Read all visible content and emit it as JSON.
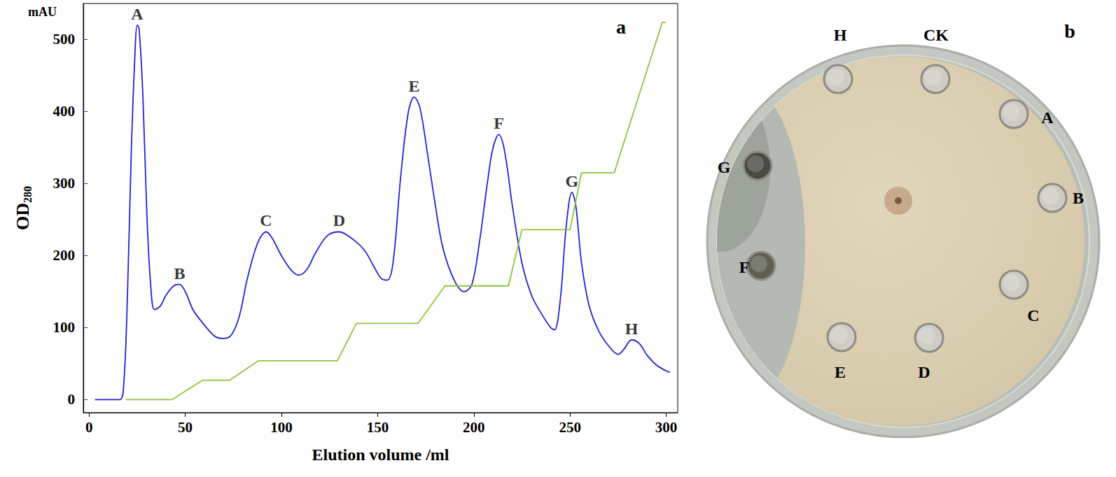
{
  "chart_data": {
    "type": "line",
    "panel_label": "a",
    "xlabel": "Elution volume /ml",
    "ylabel": {
      "text": "OD",
      "subscript": "280"
    },
    "y_unit": "mAU",
    "xlim": [
      -3,
      306
    ],
    "xticks": [
      0,
      50,
      100,
      150,
      200,
      250,
      300
    ],
    "ylim": [
      -18,
      550
    ],
    "yticks": [
      0,
      100,
      200,
      300,
      400,
      500
    ],
    "grid": false,
    "series": [
      {
        "type": "line",
        "color": "#2323d8",
        "line_style": "smooth",
        "x": [
          3,
          10,
          16,
          18,
          20,
          22,
          24,
          25,
          26,
          28,
          30,
          32,
          34,
          37,
          40,
          44,
          47,
          50,
          54,
          58,
          62,
          66,
          70,
          74,
          78,
          82,
          86,
          89,
          92,
          95,
          100,
          105,
          109,
          113,
          118,
          124,
          130,
          136,
          143,
          148,
          152,
          155,
          158,
          162,
          166,
          169,
          172,
          176,
          180,
          184,
          190,
          195,
          199,
          203,
          207,
          210,
          213,
          216,
          220,
          225,
          230,
          235,
          240,
          242,
          245,
          248,
          251,
          253,
          256,
          260,
          265,
          270,
          275,
          278,
          282,
          286,
          290,
          295,
          300,
          302
        ],
        "values": [
          0,
          0,
          0,
          20,
          150,
          350,
          490,
          520,
          515,
          420,
          260,
          160,
          125,
          130,
          145,
          158,
          160,
          150,
          125,
          110,
          97,
          87,
          85,
          90,
          115,
          165,
          205,
          225,
          233,
          225,
          200,
          180,
          173,
          180,
          205,
          228,
          233,
          225,
          208,
          185,
          168,
          166,
          190,
          310,
          400,
          420,
          405,
          340,
          270,
          210,
          165,
          150,
          160,
          220,
          300,
          350,
          368,
          345,
          270,
          190,
          145,
          120,
          100,
          97,
          140,
          240,
          288,
          270,
          190,
          130,
          95,
          75,
          63,
          70,
          83,
          78,
          62,
          48,
          40,
          38
        ]
      },
      {
        "type": "line",
        "color": "#8cc43c",
        "line_style": "straight",
        "x": [
          19,
          43,
          59,
          73,
          88,
          129,
          139,
          171,
          185,
          218,
          225,
          250,
          256,
          273,
          298,
          300
        ],
        "values": [
          0,
          0,
          27,
          27,
          54,
          54,
          106,
          106,
          158,
          158,
          236,
          236,
          315,
          315,
          524,
          524
        ]
      }
    ],
    "annotations": [
      {
        "text": "A",
        "x": 25,
        "y": 520
      },
      {
        "text": "B",
        "x": 47,
        "y": 160
      },
      {
        "text": "C",
        "x": 92,
        "y": 233
      },
      {
        "text": "D",
        "x": 130,
        "y": 233
      },
      {
        "text": "E",
        "x": 169,
        "y": 420
      },
      {
        "text": "F",
        "x": 213,
        "y": 368
      },
      {
        "text": "G",
        "x": 251,
        "y": 288
      },
      {
        "text": "H",
        "x": 282,
        "y": 83
      }
    ]
  },
  "plate": {
    "panel_label": "b",
    "wells": [
      "H",
      "CK",
      "A",
      "B",
      "C",
      "D",
      "E",
      "F",
      "G"
    ]
  }
}
